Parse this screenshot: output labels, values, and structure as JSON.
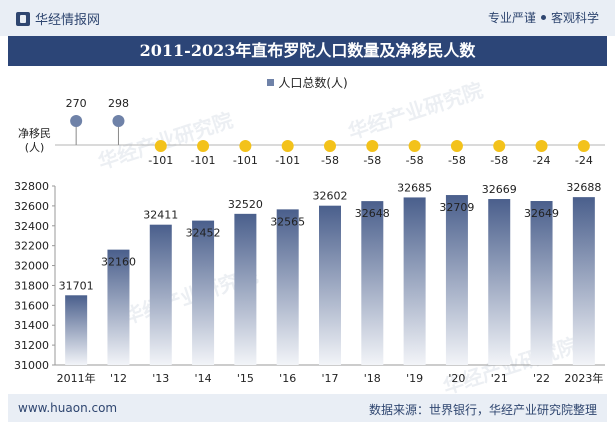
{
  "header": {
    "brand": "华经情报网",
    "tagline_left": "专业严谨",
    "tagline_right": "客观科学"
  },
  "title": "2011-2023年直布罗陀人口数量及净移民人数",
  "legend": {
    "label": "人口总数(人)"
  },
  "side_label_line1": "净移民",
  "side_label_line2": "(人)",
  "watermark": "华经产业研究院",
  "footer": {
    "site": "www.huaon.com",
    "source": "数据来源：世界银行，华经产业研究院整理"
  },
  "colors": {
    "bar_top": "#4a5f8c",
    "bar_bottom": "#f2f4f8",
    "dot_positive": "#6f82a8",
    "dot_negative": "#f3c21a",
    "title_bg": "#2c4577"
  },
  "chart_data": [
    {
      "type": "bar",
      "title": "",
      "categories": [
        "2011年",
        "'12",
        "'13",
        "'14",
        "'15",
        "'16",
        "'17",
        "'18",
        "'19",
        "'20",
        "'21",
        "'22",
        "2023年"
      ],
      "series": [
        {
          "name": "人口总数(人)",
          "values": [
            31701,
            32160,
            32411,
            32452,
            32520,
            32565,
            32602,
            32648,
            32685,
            32709,
            32669,
            32649,
            32688
          ]
        }
      ],
      "ylim": [
        31000,
        32800
      ],
      "yticks": [
        31000,
        31200,
        31400,
        31600,
        31800,
        32000,
        32200,
        32400,
        32600,
        32800
      ],
      "grid": false,
      "legend": "top-center"
    },
    {
      "type": "scatter",
      "title": "",
      "ylabel": "净移民(人)",
      "categories": [
        "2011年",
        "'12",
        "'13",
        "'14",
        "'15",
        "'16",
        "'17",
        "'18",
        "'19",
        "'20",
        "'21",
        "'22",
        "2023年"
      ],
      "series": [
        {
          "values": [
            270,
            298,
            -101,
            -101,
            -101,
            -101,
            -58,
            -58,
            -58,
            -58,
            -58,
            -24,
            -24
          ]
        }
      ],
      "style": "lollipop"
    }
  ]
}
